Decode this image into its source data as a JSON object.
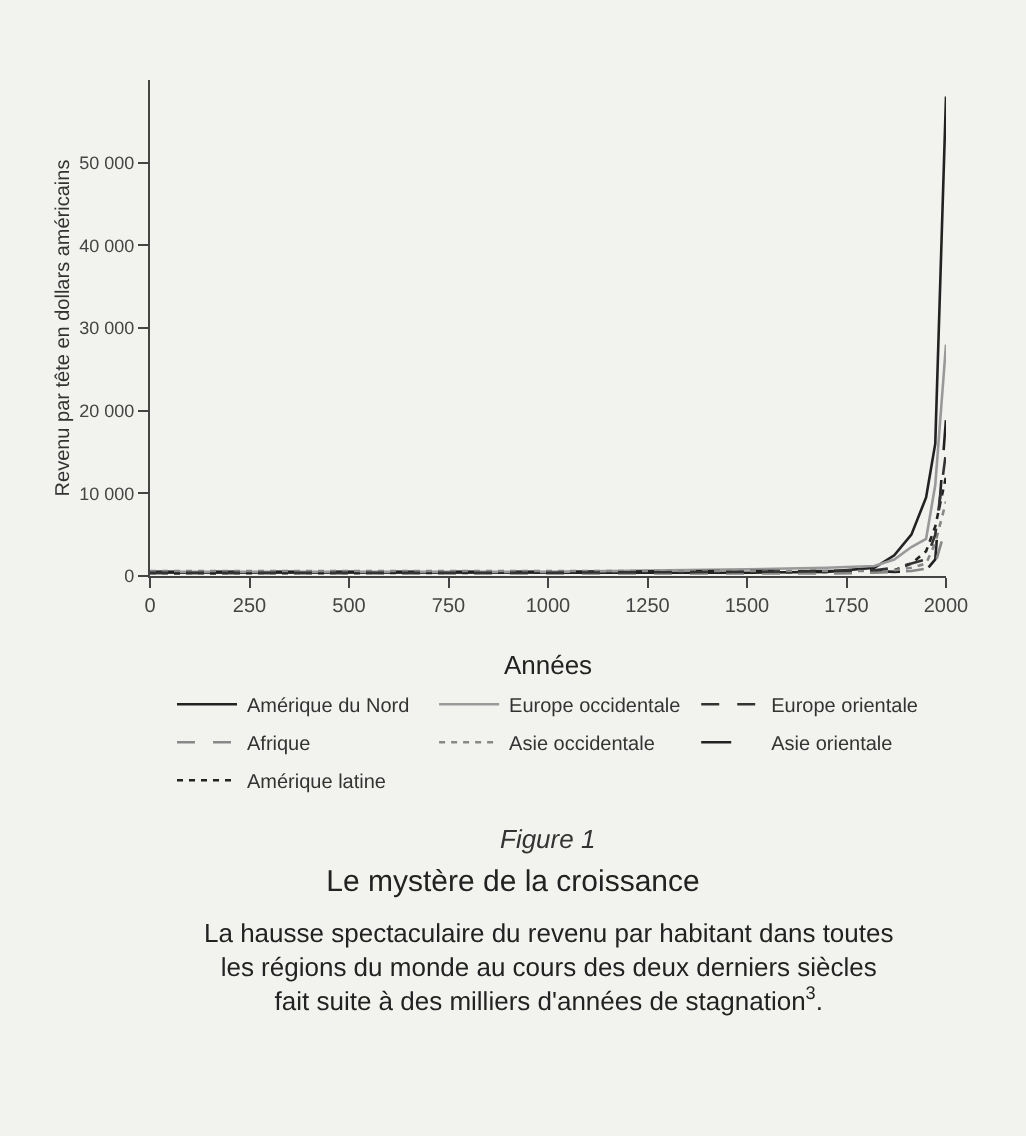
{
  "chart_data": {
    "type": "line",
    "title": "Le mystère de la croissance",
    "subtitle": "La hausse spectaculaire du revenu par habitant dans toutes\nles régions du monde au cours des deux derniers siècles\nfait suite à des milliers d'années de stagnation$^{3}$.",
    "annotations": [
      "Figure 1"
    ],
    "xlabel": "Années",
    "ylabel": "Revenu par tête en dollars américains",
    "x": [
      0,
      1000,
      1500,
      1700,
      1820,
      1870,
      1913,
      1950,
      1973,
      2000
    ],
    "series": [
      {
        "name": "Amérique du Nord",
        "color": "#222222",
        "line_style": "solid",
        "values": [
          400,
          400,
          400,
          500,
          1000,
          2500,
          5000,
          9500,
          16000,
          58000
        ]
      },
      {
        "name": "Europe occidentale",
        "color": "#999999",
        "line_style": "solid",
        "values": [
          500,
          500,
          800,
          1000,
          1200,
          2000,
          3500,
          4500,
          11000,
          28000
        ]
      },
      {
        "name": "Europe orientale",
        "color": "#333333",
        "line_style": "dashed",
        "values": [
          400,
          400,
          500,
          600,
          700,
          1000,
          1500,
          2000,
          5000,
          15000
        ]
      },
      {
        "name": "Afrique",
        "color": "#888888",
        "line_style": "dashed",
        "values": [
          300,
          300,
          300,
          300,
          400,
          500,
          600,
          900,
          1500,
          6000
        ]
      },
      {
        "name": "Asie occidentale",
        "color": "#888888",
        "line_style": "dotted",
        "values": [
          600,
          600,
          600,
          600,
          600,
          700,
          1000,
          1500,
          4000,
          9000
        ]
      },
      {
        "name": "Asie orientale",
        "color": "#222222",
        "line_style": "longdash",
        "values": [
          500,
          500,
          600,
          600,
          600,
          500,
          600,
          700,
          2000,
          19000
        ]
      },
      {
        "name": "Amérique latine",
        "color": "#222222",
        "line_style": "dotted",
        "values": [
          300,
          400,
          400,
          500,
          700,
          700,
          1500,
          3000,
          6000,
          12000
        ]
      }
    ],
    "xlim": [
      0,
      2000
    ],
    "xticks": [
      0,
      250,
      500,
      750,
      1000,
      1250,
      1500,
      1750,
      2000
    ],
    "ylim": [
      0,
      60000
    ],
    "yticks": [
      0,
      {
        "value": 10000,
        "label": "10 000"
      },
      {
        "value": 20000,
        "label": "20 000"
      },
      {
        "value": 30000,
        "label": "30 000"
      },
      {
        "value": 40000,
        "label": "40 000"
      },
      {
        "value": 50000,
        "label": "50 000"
      }
    ],
    "grid": false,
    "legend": "bottom",
    "marker": "none"
  }
}
